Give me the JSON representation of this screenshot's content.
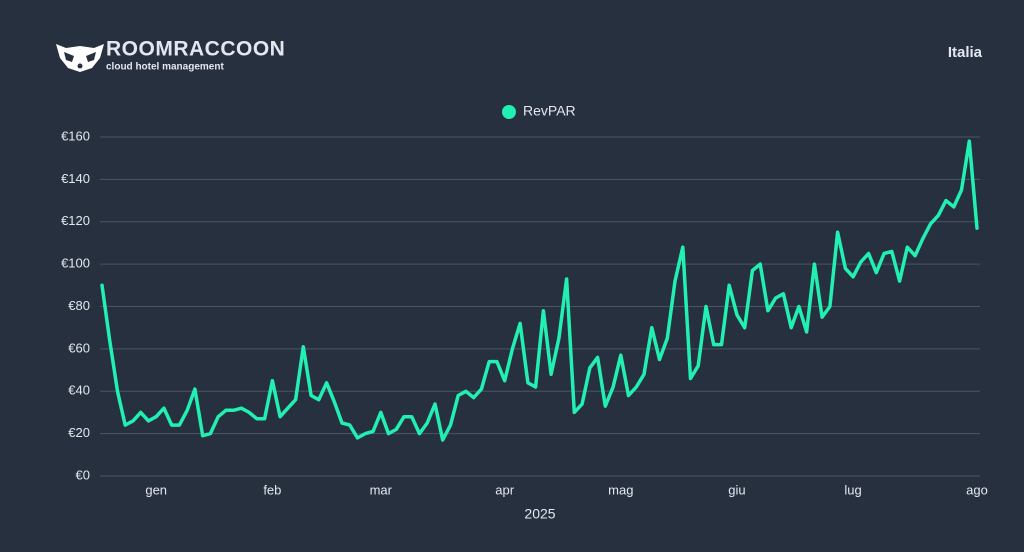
{
  "header": {
    "brand": "ROOMRACCOON",
    "tagline": "cloud hotel management",
    "region": "Italia"
  },
  "chart_data": {
    "type": "line",
    "x_label": "2025",
    "legend": "top",
    "grid": true,
    "categories": [
      null,
      null,
      null,
      null,
      null,
      null,
      null,
      "gen",
      null,
      null,
      null,
      null,
      null,
      null,
      null,
      null,
      null,
      null,
      null,
      null,
      null,
      null,
      "feb",
      null,
      null,
      null,
      null,
      null,
      null,
      null,
      null,
      null,
      null,
      null,
      null,
      null,
      "mar",
      null,
      null,
      null,
      null,
      null,
      null,
      null,
      null,
      null,
      null,
      null,
      null,
      null,
      null,
      null,
      "apr",
      null,
      null,
      null,
      null,
      null,
      null,
      null,
      null,
      null,
      null,
      null,
      null,
      null,
      null,
      "mag",
      null,
      null,
      null,
      null,
      null,
      null,
      null,
      null,
      null,
      null,
      null,
      null,
      null,
      null,
      "giu",
      null,
      null,
      null,
      null,
      null,
      null,
      null,
      null,
      null,
      null,
      null,
      null,
      null,
      null,
      "lug",
      null,
      null,
      null,
      null,
      null,
      null,
      null,
      null,
      null,
      null,
      null,
      null,
      null,
      null,
      null,
      "ago"
    ],
    "series": [
      {
        "name": "RevPAR",
        "color": "#22f0b2",
        "values": [
          90,
          64,
          40,
          24,
          26,
          30,
          26,
          28,
          32,
          24,
          24,
          31,
          41,
          19,
          20,
          28,
          31,
          31,
          32,
          30,
          27,
          27,
          45,
          28,
          32,
          36,
          61,
          38,
          36,
          44,
          35,
          25,
          24,
          18,
          20,
          21,
          30,
          20,
          22,
          28,
          28,
          20,
          25,
          34,
          17,
          24,
          38,
          40,
          37,
          41,
          54,
          54,
          45,
          60,
          72,
          44,
          42,
          78,
          48,
          65,
          93,
          30,
          34,
          51,
          56,
          33,
          42,
          57,
          38,
          42,
          48,
          70,
          55,
          65,
          92,
          108,
          46,
          52,
          80,
          62,
          62,
          90,
          76,
          70,
          97,
          100,
          78,
          84,
          86,
          70,
          80,
          68,
          100,
          75,
          80,
          115,
          98,
          94,
          101,
          105,
          96,
          105,
          106,
          92,
          108,
          104,
          112,
          119,
          123,
          130,
          127,
          135,
          158,
          117
        ]
      }
    ],
    "ylim": [
      0,
      160
    ],
    "yticks": [
      {
        "value": 0,
        "label": "€0"
      },
      {
        "value": 20,
        "label": "€20"
      },
      {
        "value": 40,
        "label": "€40"
      },
      {
        "value": 60,
        "label": "€60"
      },
      {
        "value": 80,
        "label": "€80"
      },
      {
        "value": 100,
        "label": "€100"
      },
      {
        "value": 120,
        "label": "€120"
      },
      {
        "value": 140,
        "label": "€140"
      },
      {
        "value": 160,
        "label": "€160"
      }
    ]
  }
}
